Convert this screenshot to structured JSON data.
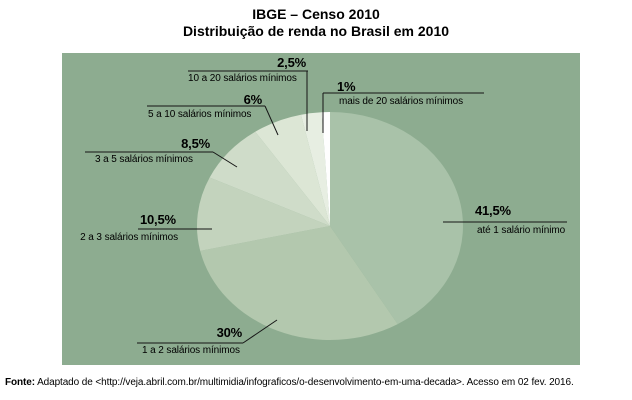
{
  "title": {
    "line1": "IBGE – Censo 2010",
    "line2": "Distribuição de renda no Brasil em 2010"
  },
  "chart_data": {
    "type": "pie",
    "title": "IBGE – Censo 2010 — Distribuição de renda no Brasil em 2010",
    "unit": "percent",
    "start_angle_deg": 0,
    "direction": "clockwise",
    "background_color": "#8dac90",
    "line_color": "#151515",
    "slices": [
      {
        "label": "até 1 salário mínimo",
        "value": 41.5,
        "pct_label": "41,5%",
        "color": "#a9c2a9"
      },
      {
        "label": "1 a 2 salários mínimos",
        "value": 30,
        "pct_label": "30%",
        "color": "#b3c8ae"
      },
      {
        "label": "2 a 3 salários mínimos",
        "value": 10.5,
        "pct_label": "10,5%",
        "color": "#c3d3bd"
      },
      {
        "label": "3 a 5 salários mínimos",
        "value": 8.5,
        "pct_label": "8,5%",
        "color": "#cfdcc9"
      },
      {
        "label": "5 a 10 salários mínimos",
        "value": 6,
        "pct_label": "6%",
        "color": "#dce6d5"
      },
      {
        "label": "10 a 20 salários mínimos",
        "value": 2.5,
        "pct_label": "2,5%",
        "color": "#e7eee2"
      },
      {
        "label": "mais de 20 salários mínimos",
        "value": 1,
        "pct_label": "1%",
        "color": "#fefefe"
      }
    ]
  },
  "footer": {
    "prefix": "Fonte:",
    "text": " Adaptado de <http://veja.abril.com.br/multimidia/infograficos/o-desenvolvimento-em-uma-decada>. Acesso em 02 fev. 2016."
  }
}
